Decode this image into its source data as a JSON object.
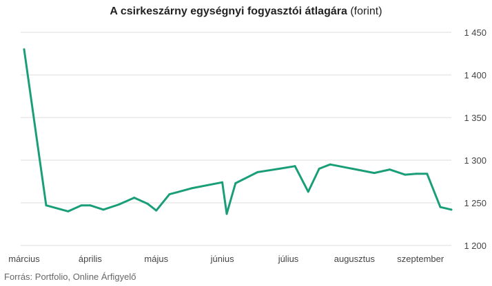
{
  "chart_data": {
    "type": "line",
    "title_bold": "A csirkeszárny egységnyi fogyasztói átlagára",
    "title_unit": "(forint)",
    "xlabel": "",
    "ylabel": "",
    "ylim": [
      1200,
      1450
    ],
    "yticks": [
      1200,
      1250,
      1300,
      1350,
      1400,
      1450
    ],
    "ytick_labels": [
      "1 200",
      "1 250",
      "1 300",
      "1 350",
      "1 400",
      "1 450"
    ],
    "y_axis_side": "right",
    "grid": "horizontal",
    "legend": "none",
    "color": "#1a9e78",
    "x_months": [
      "március",
      "április",
      "május",
      "június",
      "július",
      "augusztus",
      "szeptember"
    ],
    "month_positions": [
      0,
      3,
      6,
      9,
      12,
      15,
      18
    ],
    "xlim": [
      0,
      19.4
    ],
    "series": [
      {
        "x": [
          0,
          1,
          2,
          2.6,
          3,
          3.6,
          4.3,
          5,
          5.6,
          6,
          6.6,
          7.6,
          9,
          9.2,
          9.6,
          10.6,
          11.6,
          12.3,
          12.9,
          13.4,
          13.9,
          14.9,
          15.9,
          16.6,
          17.3,
          17.8,
          18.3,
          18.9,
          19.4
        ],
        "y": [
          1430,
          1247,
          1240,
          1247,
          1247,
          1242,
          1248,
          1256,
          1249,
          1241,
          1260,
          1267,
          1274,
          1237,
          1273,
          1286,
          1290,
          1293,
          1263,
          1290,
          1295,
          1290,
          1285,
          1289,
          1283,
          1284,
          1284,
          1245,
          1242
        ]
      }
    ]
  },
  "source_text": "Forrás: Portfolio, Online Árfigyelő"
}
